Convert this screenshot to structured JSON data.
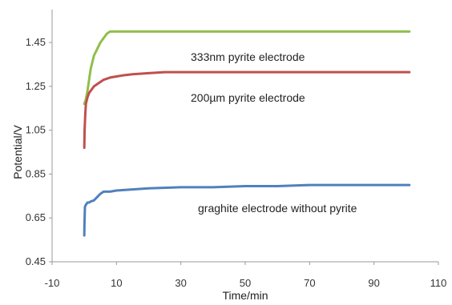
{
  "chart_data": {
    "type": "line",
    "title": "",
    "xlabel": "Time/min",
    "ylabel": "Potential/V",
    "xlim": [
      -10,
      110
    ],
    "ylim": [
      0.45,
      1.6
    ],
    "x_ticks": [
      -10,
      10,
      30,
      50,
      70,
      90,
      110
    ],
    "y_ticks": [
      0.45,
      0.65,
      0.85,
      1.05,
      1.25,
      1.45
    ],
    "x_tick_labels": [
      "-10",
      "10",
      "30",
      "50",
      "70",
      "90",
      "110"
    ],
    "y_tick_labels": [
      "0.45",
      "0.65",
      "0.85",
      "1.05",
      "1.25",
      "1.45"
    ],
    "grid": false,
    "legend": "none",
    "series": [
      {
        "color": "#8fbf4a",
        "annotation": "333nm pyrite electrode",
        "x": [
          0,
          0.5,
          1,
          1.5,
          2,
          3,
          4,
          5,
          6,
          7,
          8,
          10,
          15,
          20,
          30,
          40,
          50,
          60,
          70,
          80,
          90,
          101
        ],
        "y": [
          1.17,
          1.19,
          1.23,
          1.28,
          1.33,
          1.39,
          1.42,
          1.45,
          1.47,
          1.49,
          1.5,
          1.5,
          1.5,
          1.5,
          1.5,
          1.5,
          1.5,
          1.5,
          1.5,
          1.5,
          1.5,
          1.5
        ]
      },
      {
        "color": "#c0504d",
        "annotation": "200µm pyrite electrode",
        "x": [
          0,
          0.1,
          0.3,
          0.5,
          1,
          1.5,
          2,
          3,
          4,
          5,
          6,
          8,
          10,
          12,
          15,
          20,
          25,
          30,
          40,
          50,
          60,
          70,
          80,
          90,
          101
        ],
        "y": [
          0.97,
          1.05,
          1.12,
          1.17,
          1.2,
          1.22,
          1.23,
          1.25,
          1.26,
          1.27,
          1.28,
          1.29,
          1.295,
          1.3,
          1.305,
          1.31,
          1.315,
          1.315,
          1.315,
          1.315,
          1.315,
          1.315,
          1.315,
          1.315,
          1.315
        ]
      },
      {
        "color": "#4f81bd",
        "annotation": "graghite electrode  without pyrite",
        "x": [
          0,
          0.05,
          0.2,
          0.5,
          1,
          1.5,
          2,
          3,
          4,
          5,
          6,
          8,
          10,
          15,
          20,
          30,
          40,
          50,
          60,
          70,
          80,
          90,
          101
        ],
        "y": [
          0.57,
          0.62,
          0.7,
          0.71,
          0.72,
          0.72,
          0.725,
          0.73,
          0.745,
          0.76,
          0.77,
          0.77,
          0.775,
          0.78,
          0.785,
          0.79,
          0.79,
          0.795,
          0.795,
          0.8,
          0.8,
          0.8,
          0.8
        ]
      }
    ]
  }
}
